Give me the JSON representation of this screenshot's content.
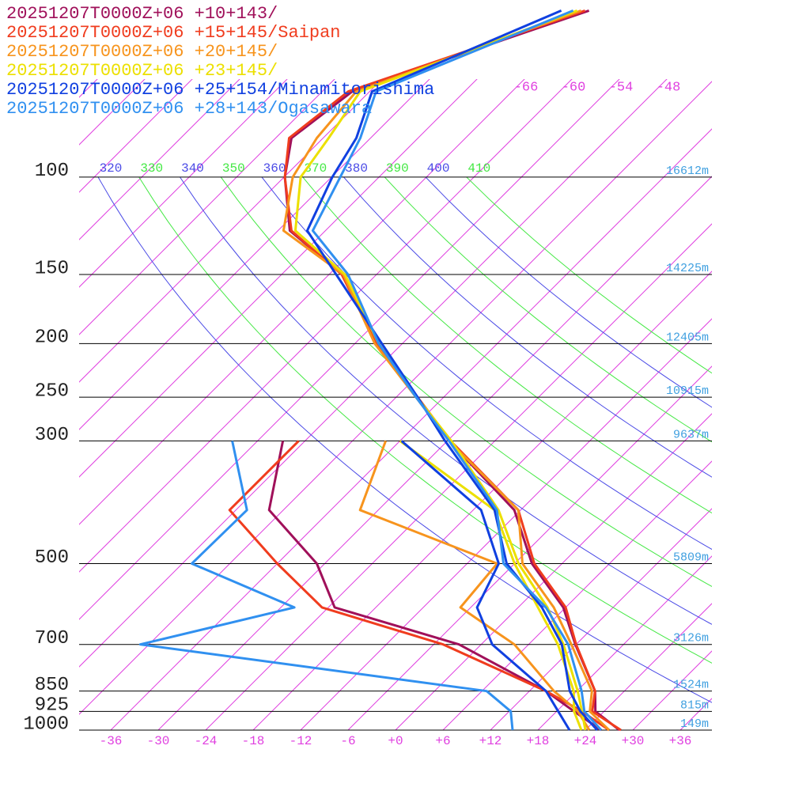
{
  "chart_data": {
    "type": "skewt",
    "ylim": [
      1000,
      48
    ],
    "xlim": [
      -40,
      40
    ],
    "log_y": true,
    "yticks": [
      1000,
      925,
      850,
      700,
      500,
      300,
      250,
      200,
      150,
      100
    ],
    "height_labels": [
      "149m",
      "815m",
      "1524m",
      "3126m",
      "5809m",
      "9637m",
      "10915m",
      "12405m",
      "14225m",
      "16612m"
    ],
    "xticks": [
      -36,
      -30,
      -24,
      -18,
      -12,
      -6,
      {
        "value": 0,
        "label": "+0"
      },
      {
        "value": 6,
        "label": "+6"
      },
      {
        "value": 12,
        "label": "+12"
      },
      {
        "value": 18,
        "label": "+18"
      },
      {
        "value": 24,
        "label": "+24"
      },
      {
        "value": 30,
        "label": "+30"
      },
      {
        "value": 36,
        "label": "+36"
      }
    ],
    "isotherm_labels": [
      -66,
      -60,
      -54,
      -48
    ],
    "isotherms": [
      -120,
      -114,
      -108,
      -102,
      -96,
      -90,
      -84,
      -78,
      -72,
      -66,
      -60,
      -54,
      -48,
      -42,
      -36,
      -30,
      -24,
      -18,
      -12,
      -6,
      0,
      6,
      12,
      18,
      24,
      30,
      36
    ],
    "isotherm_color": "#e040e0",
    "thetas": [
      320,
      330,
      340,
      350,
      360,
      370,
      380,
      390,
      400,
      410
    ],
    "theta_colors": [
      "#4a4ae6",
      "#44e844"
    ],
    "height_color": "#40a0e0",
    "levels": [
      1000,
      925,
      850,
      700,
      600,
      500,
      400,
      300,
      250,
      200,
      150,
      125,
      100,
      85,
      70,
      50
    ],
    "series": [
      {
        "name": "20251207T0000Z+06 +10+143/",
        "color": "#a0105a",
        "temperature": [
          28.3,
          22.9,
          20.3,
          11.9,
          5.7,
          -3.8,
          -12.8,
          -29.8,
          -39.4,
          -51.2,
          -64.3,
          -76.5,
          -83.9,
          -88,
          -86.2,
          -66.5
        ],
        "dewpoint": [
          26,
          20.2,
          14.1,
          -2.8,
          -23.2,
          -31,
          -43.8,
          -50.8,
          null,
          null,
          null,
          null,
          null,
          null,
          null,
          null
        ]
      },
      {
        "name": "20251207T0000Z+06 +15+145/Saipan",
        "color": "#f03c1e",
        "temperature": [
          28.5,
          22.5,
          20.3,
          12,
          6,
          -3.5,
          -12.3,
          -29.6,
          -39.3,
          -51.3,
          -64.4,
          -76.3,
          -83.9,
          -88.3,
          -86.7,
          -67
        ],
        "dewpoint": [
          27,
          21.2,
          14.1,
          -4.8,
          -24.8,
          -36,
          -48.8,
          -48.8,
          null,
          null,
          null,
          null,
          null,
          null,
          null,
          null
        ]
      },
      {
        "name": "20251207T0000Z+06 +20+145/",
        "color": "#f7941d",
        "temperature": [
          27,
          22.2,
          19.9,
          11.4,
          4.5,
          -5,
          -12.3,
          -29.8,
          -39.5,
          -51.5,
          -64.2,
          -77.3,
          -82.9,
          -84.8,
          -85.7,
          -67.5
        ],
        "dewpoint": [
          24.5,
          20.7,
          15.1,
          4.2,
          -7.3,
          -8.2,
          -32.3,
          -37.8,
          null,
          null,
          null,
          null,
          null,
          null,
          null,
          null
        ]
      },
      {
        "name": "20251207T0000Z+06 +23+145/",
        "color": "#ece000",
        "temperature": [
          24,
          21.2,
          18.1,
          10.4,
          3.7,
          -5.5,
          -14.8,
          -29.5,
          -39.4,
          -51,
          -64,
          -75.8,
          -81.9,
          -83.3,
          -85.2,
          -68
        ],
        "dewpoint": [
          23.5,
          20.2,
          17.6,
          9.7,
          2.5,
          -6,
          -15.3,
          -36,
          null,
          null,
          null,
          null,
          null,
          null,
          null,
          null
        ]
      },
      {
        "name": "20251207T0000Z+06 +25+154/Minamitorishima",
        "color": "#1040e0",
        "temperature": [
          25.5,
          21,
          17.1,
          10.2,
          3,
          -7,
          -15.3,
          -30.3,
          -39.3,
          -50.6,
          -65.1,
          -74.3,
          -77.9,
          -79.8,
          -83.7,
          -70
        ],
        "dewpoint": [
          22,
          18.2,
          14.1,
          1.4,
          -5.2,
          -8,
          -17,
          -35.8,
          null,
          null,
          null,
          null,
          null,
          null,
          null,
          null
        ]
      },
      {
        "name": "20251207T0000Z+06 +28+143/Ogasawara",
        "color": "#3090f0",
        "temperature": [
          26,
          21.5,
          18.6,
          11,
          3.5,
          -7.4,
          -15,
          -29.8,
          -39.5,
          -51,
          -63.6,
          -73.6,
          -76.9,
          -79.3,
          -83.2,
          -68.5
        ],
        "dewpoint": [
          14.8,
          12.2,
          6.6,
          -43.1,
          -28.3,
          -46.8,
          -46.6,
          -57.2,
          null,
          null,
          null,
          null,
          null,
          null,
          null,
          null
        ]
      }
    ]
  }
}
